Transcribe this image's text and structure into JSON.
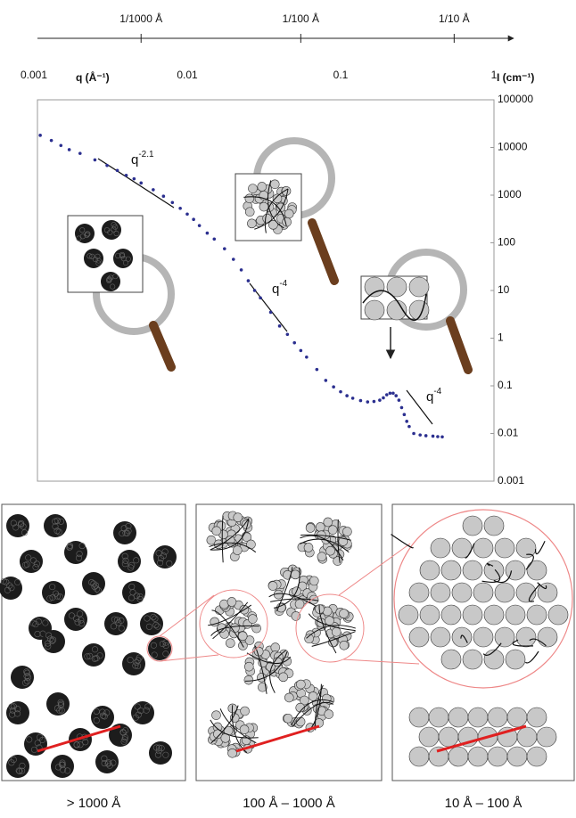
{
  "chart_data": {
    "type": "scatter",
    "xlabel": "q (Å⁻¹)",
    "ylabel": "I (cm⁻¹)",
    "log_x": true,
    "log_y": true,
    "xlim": [
      0.001,
      1
    ],
    "xticks": [
      0.001,
      0.01,
      0.1,
      1
    ],
    "ylim": [
      0.001,
      100000
    ],
    "yticks": [
      100000,
      10000,
      1000,
      100,
      10,
      1,
      0.1,
      0.01,
      0.001
    ],
    "color": "#2b2f8f",
    "x": [
      0.0011,
      0.0013,
      0.0015,
      0.0017,
      0.002,
      0.0025,
      0.003,
      0.0035,
      0.004,
      0.0045,
      0.005,
      0.006,
      0.007,
      0.008,
      0.009,
      0.01,
      0.011,
      0.012,
      0.0135,
      0.015,
      0.0175,
      0.02,
      0.0225,
      0.025,
      0.0275,
      0.03,
      0.035,
      0.04,
      0.045,
      0.05,
      0.055,
      0.06,
      0.07,
      0.08,
      0.09,
      0.1,
      0.11,
      0.12,
      0.135,
      0.15,
      0.165,
      0.18,
      0.19,
      0.2,
      0.21,
      0.22,
      0.23,
      0.24,
      0.25,
      0.26,
      0.27,
      0.28,
      0.3,
      0.33,
      0.36,
      0.4,
      0.43,
      0.46
    ],
    "values": [
      18000,
      14000,
      11000,
      9000,
      7500,
      5500,
      4200,
      3300,
      2600,
      2200,
      1800,
      1300,
      950,
      700,
      530,
      400,
      310,
      230,
      160,
      120,
      75,
      45,
      27,
      16,
      10,
      7,
      3.5,
      1.8,
      1.2,
      0.8,
      0.55,
      0.4,
      0.22,
      0.13,
      0.095,
      0.075,
      0.062,
      0.055,
      0.049,
      0.046,
      0.047,
      0.05,
      0.056,
      0.065,
      0.07,
      0.07,
      0.062,
      0.05,
      0.035,
      0.025,
      0.018,
      0.014,
      0.01,
      0.0093,
      0.009,
      0.0088,
      0.0086,
      0.0085
    ],
    "top_axis": {
      "ticks": [
        {
          "value": 0.005,
          "label": "1/1000 Å"
        },
        {
          "value": 0.055,
          "label": "1/100 Å"
        },
        {
          "value": 0.55,
          "label": "1/10 Å"
        }
      ]
    },
    "annotations": [
      {
        "text": "q",
        "superscript": "-2.1"
      },
      {
        "text": "q",
        "superscript": "-4"
      },
      {
        "text": "q",
        "superscript": "-4"
      }
    ],
    "panels": [
      {
        "label": "> 1000 Å"
      },
      {
        "label": "100 Å – 1000 Å"
      },
      {
        "label": "10 Å – 100 Å"
      }
    ]
  }
}
